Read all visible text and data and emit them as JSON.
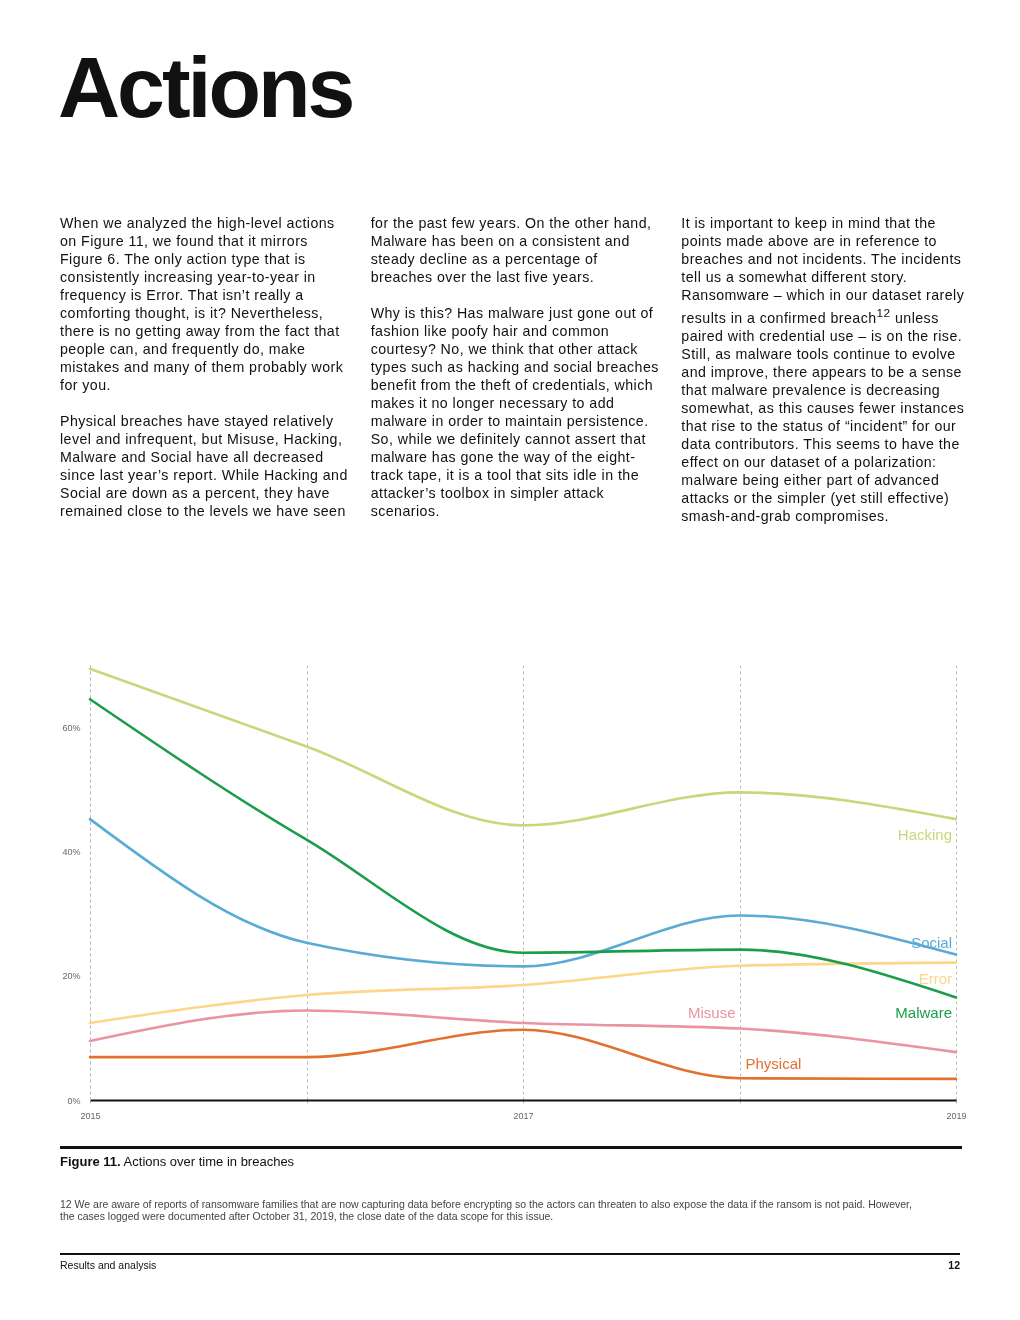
{
  "chart_data": {
    "type": "line",
    "title": "Actions",
    "annotations": [
      "When we analyzed the high-level actions on Figure 11, we found that it mirrors Figure 6. The only action type that is consistently increasing year-to-year in frequency is Error. That isn’t really a comforting thought, is it? Nevertheless, there is no getting away from the fact that people can, and frequently do, make mistakes and many of them probably work for you.",
      "Physical breaches have stayed relatively level and infrequent, but Misuse, Hacking, Malware and Social have all decreased since last year’s report. While Hacking and Social are down as a percent, they have remained close to the levels we have seen for the past few years. On the other hand, Malware has been on a consistent and steady decline as a percentage of breaches over the last five years.",
      "Why is this? Has malware just gone out of fashion like poofy hair and common courtesy? No, we think that other attack types such as hacking and social breaches benefit from the theft of credentials, which makes it no longer necessary to add malware in order to maintain persistence. So, while we definitely cannot assert that malware has gone the way of the eight-track tape, it is a tool that sits idle in the attacker’s toolbox in simpler attack scenarios.",
      "It is important to keep in mind that the points made above are in reference to breaches and not incidents. The incidents tell us a somewhat different story. Ransomware – which in our dataset rarely results in a confirmed breach$^{12}$ unless paired with credential use – is on the rise. Still, as malware tools continue to evolve and improve, there appears to be a sense that malware prevalence is decreasing somewhat, as this causes fewer instances that rise to the status of “incident” for our data contributors. This seems to have the effect on our dataset of a polarization: malware being either part of advanced attacks or the simpler (yet still effective) smash-and-grab compromises.",
      "Figure 11. Actions over time in breaches",
      "12 We are aware of reports of ransomware families that are now capturing data before encrypting so the actors can threaten to also expose the data if the ransom is not paid. However, the cases logged were documented after October 31, 2019, the close date of the data scope for this issue.",
      "Results and analysis",
      "12"
    ],
    "x": [
      2015,
      2016,
      2017,
      2018,
      2019
    ],
    "xlim": [
      2015,
      2019
    ],
    "xticks": [
      2015,
      {
        "value": 2016,
        "label": null
      },
      2017,
      {
        "value": 2018,
        "label": null
      },
      2019
    ],
    "ylim": [
      0,
      70
    ],
    "yticks": [
      {
        "value": 0,
        "label": "0%"
      },
      {
        "value": 20,
        "label": "20%"
      },
      {
        "value": 40,
        "label": "40%"
      },
      {
        "value": 60,
        "label": "60%"
      }
    ],
    "grid": "x",
    "series": [
      {
        "name": "Hacking",
        "color": "#c9d77a",
        "values": [
          69.4,
          56.9,
          44.2,
          49.5,
          45.2
        ]
      },
      {
        "name": "Social",
        "color": "#5aaad6",
        "values": [
          45.2,
          25.3,
          21.5,
          29.7,
          23.4
        ]
      },
      {
        "name": "Error",
        "color": "#fdd68a",
        "values": [
          12.4,
          16.9,
          18.5,
          21.6,
          22.1
        ]
      },
      {
        "name": "Malware",
        "color": "#1a9e4a",
        "values": [
          64.5,
          41.9,
          23.7,
          24.2,
          16.5
        ]
      },
      {
        "name": "Misuse",
        "color": "#ea93a3",
        "values": [
          9.5,
          14.4,
          12.4,
          11.5,
          7.7
        ]
      },
      {
        "name": "Physical",
        "color": "#e27130",
        "values": [
          6.9,
          6.9,
          11.3,
          3.5,
          3.4
        ]
      }
    ]
  }
}
